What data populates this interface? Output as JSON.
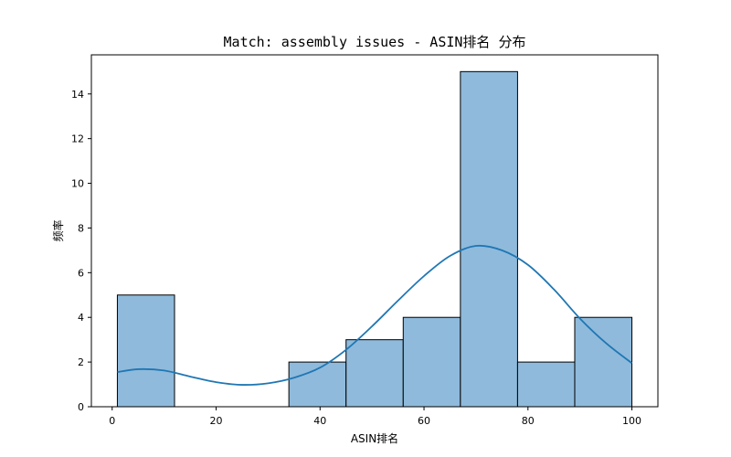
{
  "chart_data": {
    "type": "bar",
    "title": "Match: assembly issues - ASIN排名 分布",
    "xlabel": "ASIN排名",
    "ylabel": "频率",
    "xlim": [
      -4.0,
      105.0
    ],
    "ylim": [
      0,
      15.75
    ],
    "xticks": [
      0,
      20,
      40,
      60,
      80,
      100
    ],
    "yticks": [
      0,
      2,
      4,
      6,
      8,
      10,
      12,
      14
    ],
    "bins": [
      {
        "start": 1.0,
        "end": 12.0,
        "count": 5
      },
      {
        "start": 12.0,
        "end": 23.0,
        "count": 0
      },
      {
        "start": 23.0,
        "end": 34.0,
        "count": 0
      },
      {
        "start": 34.0,
        "end": 45.0,
        "count": 2
      },
      {
        "start": 45.0,
        "end": 56.0,
        "count": 3
      },
      {
        "start": 56.0,
        "end": 67.0,
        "count": 4
      },
      {
        "start": 67.0,
        "end": 78.0,
        "count": 15
      },
      {
        "start": 78.0,
        "end": 89.0,
        "count": 2
      },
      {
        "start": 89.0,
        "end": 100.0,
        "count": 4
      }
    ],
    "kde": {
      "x": [
        1,
        5,
        10,
        15,
        20,
        25,
        30,
        35,
        40,
        45,
        50,
        55,
        60,
        65,
        70,
        75,
        80,
        85,
        90,
        95,
        100
      ],
      "y": [
        1.55,
        1.68,
        1.62,
        1.35,
        1.1,
        0.98,
        1.05,
        1.3,
        1.75,
        2.55,
        3.6,
        4.75,
        5.85,
        6.75,
        7.2,
        7.0,
        6.35,
        5.25,
        3.95,
        2.85,
        1.95
      ]
    },
    "grid": false,
    "colors": {
      "bar_fill": "#8fbadb",
      "bar_edge": "#000000",
      "kde_line": "#1f77b4"
    }
  }
}
